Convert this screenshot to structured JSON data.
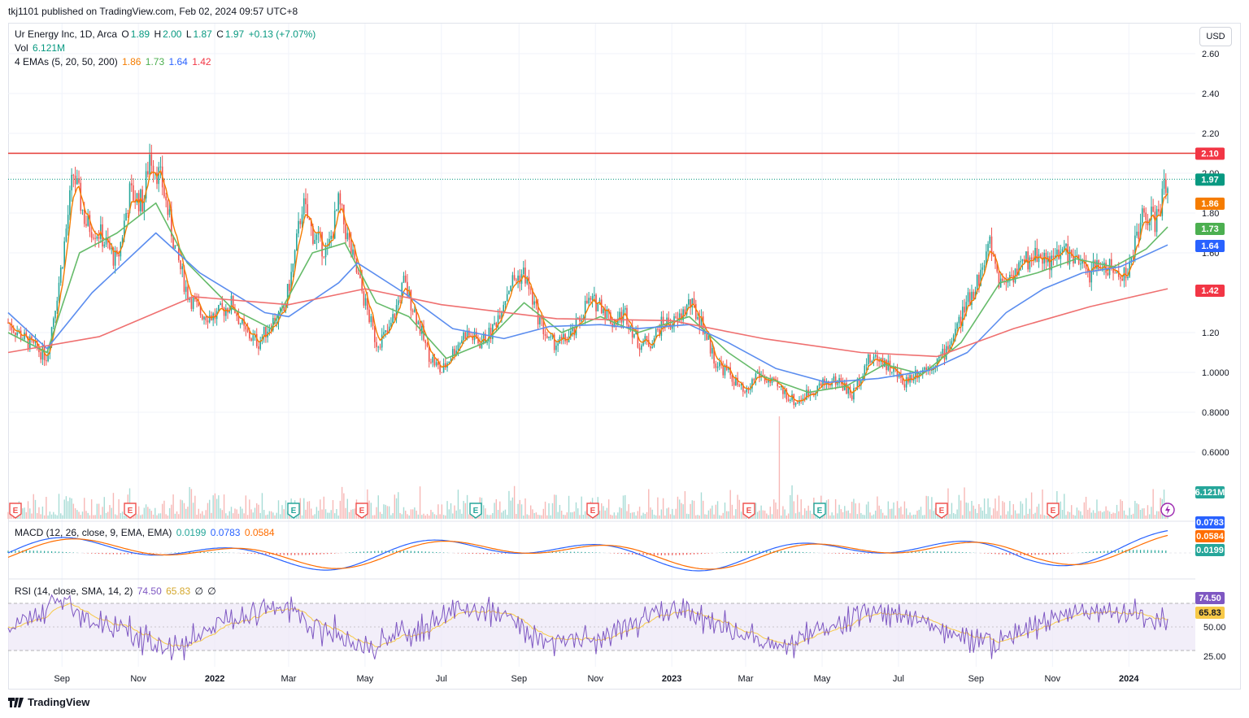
{
  "header": {
    "published": "tkj1101 published on TradingView.com, Feb 02, 2024 09:57 UTC+8"
  },
  "legend": {
    "symbol": "Ur Energy Inc, 1D, Arca",
    "o_label": "O",
    "o": "1.89",
    "h_label": "H",
    "h": "2.00",
    "l_label": "L",
    "l": "1.87",
    "c_label": "C",
    "c": "1.97",
    "change": "+0.13 (+7.07%)",
    "vol_label": "Vol",
    "vol": "6.121M",
    "ema_label": "4 EMAs (5, 20, 50, 200)",
    "ema5": "1.86",
    "ema20": "1.73",
    "ema50": "1.64",
    "ema200": "1.42",
    "macd_label": "MACD (12, 26, close, 9, EMA, EMA)",
    "macd_hist": "0.0199",
    "macd_line": "0.0783",
    "macd_signal": "0.0584",
    "rsi_label": "RSI (14, close, SMA, 14, 2)",
    "rsi": "74.50",
    "rsi_ma": "65.83",
    "rsi_extra1": "∅",
    "rsi_extra2": "∅"
  },
  "currency_button": "USD",
  "footer": {
    "brand": "TradingView"
  },
  "colors": {
    "up": "#26a69a",
    "down": "#ef5350",
    "ema5": "#f57c00",
    "ema20": "#4caf50",
    "ema50": "#2962ff",
    "ema200": "#f23645",
    "rsi": "#7e57c2",
    "rsi_ma": "#f7c948",
    "macd": "#2962ff",
    "signal": "#ff6d00"
  },
  "chart_data": {
    "type": "candlestick",
    "price_axis": {
      "ticks": [
        "2.60",
        "2.40",
        "2.20",
        "2.00",
        "1.80",
        "1.60",
        "1.20",
        "1.0000",
        "0.8000",
        "0.6000"
      ]
    },
    "time_axis": [
      "Sep",
      "Nov",
      "2022",
      "Mar",
      "May",
      "Jul",
      "Sep",
      "Nov",
      "2023",
      "Mar",
      "May",
      "Jul",
      "Sep",
      "Nov",
      "2024"
    ],
    "horizontal_line": {
      "value": 2.1,
      "label": "2.10"
    },
    "last_price": {
      "value": 1.97,
      "label": "1.97"
    },
    "ema_tags": [
      {
        "value": 1.86,
        "label": "1.86"
      },
      {
        "value": 1.73,
        "label": "1.73"
      },
      {
        "value": 1.64,
        "label": "1.64"
      },
      {
        "value": 1.42,
        "label": "1.42"
      }
    ],
    "volume_tag": "6.121M",
    "close_path": [
      [
        "2021-07-20",
        1.25
      ],
      [
        "2021-08-05",
        1.15
      ],
      [
        "2021-08-20",
        1.08
      ],
      [
        "2021-09-01",
        1.55
      ],
      [
        "2021-09-10",
        2.0
      ],
      [
        "2021-09-20",
        1.75
      ],
      [
        "2021-10-01",
        1.7
      ],
      [
        "2021-10-15",
        1.55
      ],
      [
        "2021-10-25",
        1.9
      ],
      [
        "2021-11-05",
        1.85
      ],
      [
        "2021-11-10",
        2.1
      ],
      [
        "2021-11-20",
        1.95
      ],
      [
        "2021-12-01",
        1.6
      ],
      [
        "2021-12-10",
        1.4
      ],
      [
        "2021-12-20",
        1.3
      ],
      [
        "2022-01-01",
        1.28
      ],
      [
        "2022-01-15",
        1.35
      ],
      [
        "2022-01-25",
        1.2
      ],
      [
        "2022-02-05",
        1.15
      ],
      [
        "2022-02-15",
        1.25
      ],
      [
        "2022-02-25",
        1.3
      ],
      [
        "2022-03-05",
        1.55
      ],
      [
        "2022-03-12",
        1.85
      ],
      [
        "2022-03-20",
        1.7
      ],
      [
        "2022-04-01",
        1.6
      ],
      [
        "2022-04-10",
        1.85
      ],
      [
        "2022-04-20",
        1.6
      ],
      [
        "2022-05-01",
        1.35
      ],
      [
        "2022-05-10",
        1.15
      ],
      [
        "2022-05-20",
        1.2
      ],
      [
        "2022-06-01",
        1.45
      ],
      [
        "2022-06-10",
        1.3
      ],
      [
        "2022-06-20",
        1.1
      ],
      [
        "2022-07-01",
        1.0
      ],
      [
        "2022-07-10",
        1.1
      ],
      [
        "2022-07-20",
        1.2
      ],
      [
        "2022-08-01",
        1.15
      ],
      [
        "2022-08-10",
        1.2
      ],
      [
        "2022-08-25",
        1.45
      ],
      [
        "2022-09-05",
        1.5
      ],
      [
        "2022-09-15",
        1.3
      ],
      [
        "2022-09-25",
        1.15
      ],
      [
        "2022-10-05",
        1.15
      ],
      [
        "2022-10-15",
        1.2
      ],
      [
        "2022-10-25",
        1.35
      ],
      [
        "2022-11-05",
        1.35
      ],
      [
        "2022-11-15",
        1.25
      ],
      [
        "2022-11-25",
        1.3
      ],
      [
        "2022-12-05",
        1.15
      ],
      [
        "2022-12-15",
        1.15
      ],
      [
        "2022-12-25",
        1.25
      ],
      [
        "2023-01-05",
        1.25
      ],
      [
        "2023-01-15",
        1.35
      ],
      [
        "2023-01-25",
        1.25
      ],
      [
        "2023-02-05",
        1.05
      ],
      [
        "2023-02-15",
        1.0
      ],
      [
        "2023-03-01",
        0.88
      ],
      [
        "2023-03-10",
        1.0
      ],
      [
        "2023-03-20",
        0.95
      ],
      [
        "2023-04-01",
        0.9
      ],
      [
        "2023-04-10",
        0.85
      ],
      [
        "2023-04-25",
        0.92
      ],
      [
        "2023-05-05",
        0.95
      ],
      [
        "2023-05-15",
        0.96
      ],
      [
        "2023-05-25",
        0.88
      ],
      [
        "2023-06-05",
        1.05
      ],
      [
        "2023-06-15",
        1.08
      ],
      [
        "2023-06-25",
        1.02
      ],
      [
        "2023-07-05",
        0.95
      ],
      [
        "2023-07-15",
        1.0
      ],
      [
        "2023-07-25",
        1.03
      ],
      [
        "2023-08-05",
        1.08
      ],
      [
        "2023-08-15",
        1.2
      ],
      [
        "2023-08-25",
        1.35
      ],
      [
        "2023-09-05",
        1.5
      ],
      [
        "2023-09-12",
        1.65
      ],
      [
        "2023-09-20",
        1.45
      ],
      [
        "2023-10-01",
        1.5
      ],
      [
        "2023-10-10",
        1.55
      ],
      [
        "2023-10-20",
        1.6
      ],
      [
        "2023-11-01",
        1.55
      ],
      [
        "2023-11-10",
        1.62
      ],
      [
        "2023-11-20",
        1.55
      ],
      [
        "2023-12-01",
        1.5
      ],
      [
        "2023-12-10",
        1.55
      ],
      [
        "2023-12-20",
        1.5
      ],
      [
        "2024-01-01",
        1.5
      ],
      [
        "2024-01-08",
        1.72
      ],
      [
        "2024-01-15",
        1.8
      ],
      [
        "2024-01-22",
        1.75
      ],
      [
        "2024-02-01",
        1.97
      ]
    ],
    "ema_paths": {
      "ema20": [
        [
          "2021-07-20",
          1.2
        ],
        [
          "2021-08-20",
          1.1
        ],
        [
          "2021-09-15",
          1.6
        ],
        [
          "2021-10-15",
          1.7
        ],
        [
          "2021-11-15",
          1.85
        ],
        [
          "2021-12-10",
          1.55
        ],
        [
          "2022-01-15",
          1.32
        ],
        [
          "2022-02-15",
          1.22
        ],
        [
          "2022-03-20",
          1.6
        ],
        [
          "2022-04-15",
          1.65
        ],
        [
          "2022-05-10",
          1.35
        ],
        [
          "2022-06-05",
          1.28
        ],
        [
          "2022-07-05",
          1.07
        ],
        [
          "2022-08-05",
          1.15
        ],
        [
          "2022-09-05",
          1.35
        ],
        [
          "2022-10-05",
          1.2
        ],
        [
          "2022-11-05",
          1.28
        ],
        [
          "2022-12-05",
          1.2
        ],
        [
          "2023-01-15",
          1.28
        ],
        [
          "2023-02-15",
          1.1
        ],
        [
          "2023-03-15",
          0.98
        ],
        [
          "2023-04-20",
          0.9
        ],
        [
          "2023-05-20",
          0.93
        ],
        [
          "2023-06-20",
          1.04
        ],
        [
          "2023-07-20",
          0.99
        ],
        [
          "2023-08-20",
          1.15
        ],
        [
          "2023-09-20",
          1.45
        ],
        [
          "2023-10-20",
          1.5
        ],
        [
          "2023-11-20",
          1.57
        ],
        [
          "2023-12-20",
          1.53
        ],
        [
          "2024-01-15",
          1.62
        ],
        [
          "2024-02-01",
          1.73
        ]
      ],
      "ema50": [
        [
          "2021-07-20",
          1.3
        ],
        [
          "2021-08-20",
          1.12
        ],
        [
          "2021-09-25",
          1.4
        ],
        [
          "2021-11-15",
          1.7
        ],
        [
          "2021-12-20",
          1.5
        ],
        [
          "2022-02-10",
          1.3
        ],
        [
          "2022-03-01",
          1.28
        ],
        [
          "2022-04-10",
          1.45
        ],
        [
          "2022-04-25",
          1.55
        ],
        [
          "2022-06-01",
          1.4
        ],
        [
          "2022-07-10",
          1.22
        ],
        [
          "2022-08-20",
          1.17
        ],
        [
          "2022-09-25",
          1.23
        ],
        [
          "2022-11-05",
          1.24
        ],
        [
          "2022-12-05",
          1.22
        ],
        [
          "2023-01-15",
          1.24
        ],
        [
          "2023-02-15",
          1.15
        ],
        [
          "2023-03-25",
          1.02
        ],
        [
          "2023-05-05",
          0.95
        ],
        [
          "2023-06-15",
          0.97
        ],
        [
          "2023-07-25",
          1.01
        ],
        [
          "2023-08-25",
          1.1
        ],
        [
          "2023-09-25",
          1.3
        ],
        [
          "2023-10-25",
          1.42
        ],
        [
          "2023-11-25",
          1.5
        ],
        [
          "2023-12-25",
          1.53
        ],
        [
          "2024-02-01",
          1.64
        ]
      ]
    },
    "macd_tags": [
      "0.0783",
      "0.0584",
      "0.0199"
    ],
    "rsi_tags": [
      "74.50",
      "65.83"
    ],
    "rsi_axis": [
      "50.00",
      "25.00"
    ],
    "earnings_markers": [
      "E",
      "E",
      "E",
      "E",
      "E",
      "E",
      "E",
      "E",
      "E",
      "E",
      "E"
    ]
  }
}
